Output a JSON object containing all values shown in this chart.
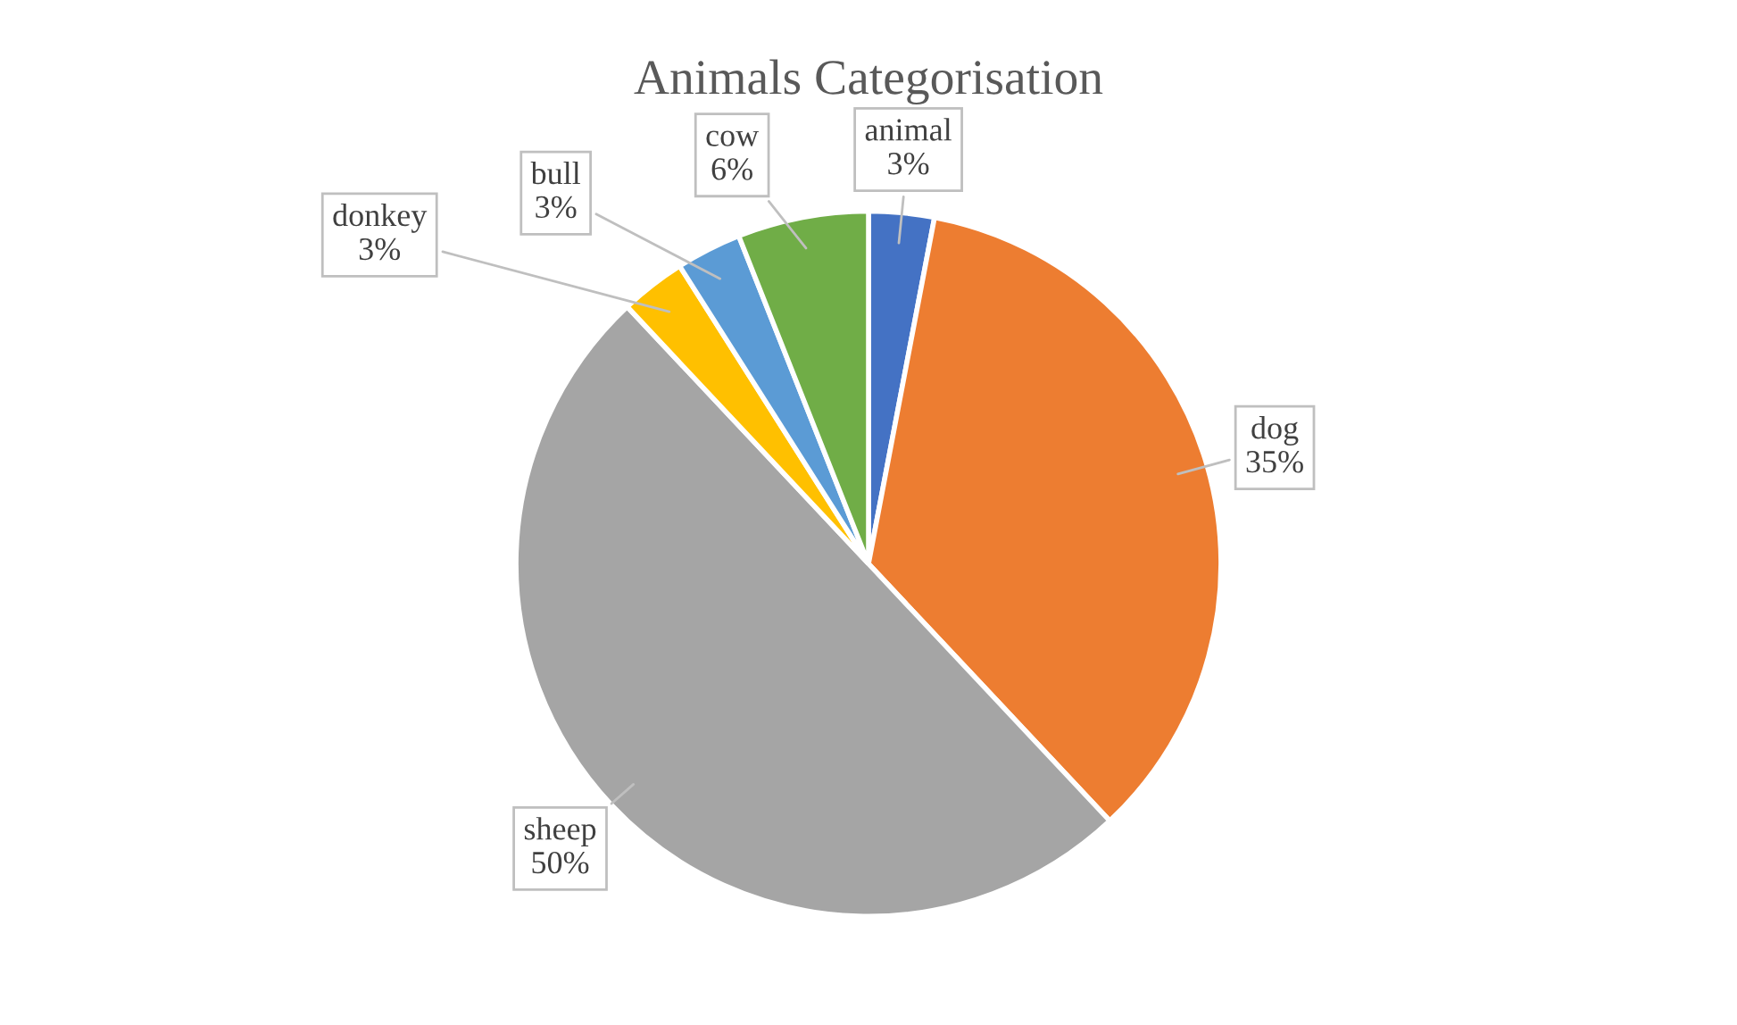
{
  "chart_data": {
    "type": "pie",
    "title": "Animals Categorisation",
    "categories": [
      "animal",
      "dog",
      "sheep",
      "donkey",
      "bull",
      "cow"
    ],
    "values": [
      3,
      35,
      50,
      3,
      3,
      6
    ],
    "colors": [
      "#4472c4",
      "#ed7d31",
      "#a5a5a5",
      "#ffc000",
      "#5b9bd5",
      "#70ad47"
    ],
    "value_labels": [
      "3%",
      "35%",
      "50%",
      "3%",
      "3%",
      "6%"
    ],
    "legend": false
  }
}
